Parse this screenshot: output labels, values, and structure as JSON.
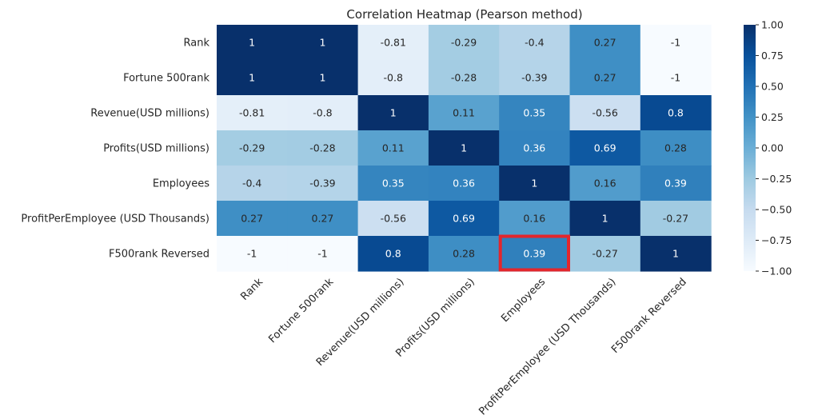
{
  "chart_data": {
    "type": "heatmap",
    "title": "Correlation Heatmap (Pearson method)",
    "xlabel": "",
    "ylabel": "",
    "row_labels": [
      "Rank",
      "Fortune 500rank",
      "Revenue(USD millions)",
      "Profits(USD millions)",
      "Employees",
      "ProfitPerEmployee (USD Thousands)",
      "F500rank Reversed"
    ],
    "col_labels": [
      "Rank",
      "Fortune 500rank",
      "Revenue(USD millions)",
      "Profits(USD millions)",
      "Employees",
      "ProfitPerEmployee (USD Thousands)",
      "F500rank Reversed"
    ],
    "values": [
      [
        1,
        1,
        -0.81,
        -0.29,
        -0.4,
        0.27,
        -1
      ],
      [
        1,
        1,
        -0.8,
        -0.28,
        -0.39,
        0.27,
        -1
      ],
      [
        -0.81,
        -0.8,
        1,
        0.11,
        0.35,
        -0.56,
        0.8
      ],
      [
        -0.29,
        -0.28,
        0.11,
        1,
        0.36,
        0.69,
        0.28
      ],
      [
        -0.4,
        -0.39,
        0.35,
        0.36,
        1,
        0.16,
        0.39
      ],
      [
        0.27,
        0.27,
        -0.56,
        0.69,
        0.16,
        1,
        -0.27
      ],
      [
        -1,
        -1,
        0.8,
        0.28,
        0.39,
        -0.27,
        1
      ]
    ],
    "annotations": [
      [
        "1",
        "1",
        "-0.81",
        "-0.29",
        "-0.4",
        "0.27",
        "-1"
      ],
      [
        "1",
        "1",
        "-0.8",
        "-0.28",
        "-0.39",
        "0.27",
        "-1"
      ],
      [
        "-0.81",
        "-0.8",
        "1",
        "0.11",
        "0.35",
        "-0.56",
        "0.8"
      ],
      [
        "-0.29",
        "-0.28",
        "0.11",
        "1",
        "0.36",
        "0.69",
        "0.28"
      ],
      [
        "-0.4",
        "-0.39",
        "0.35",
        "0.36",
        "1",
        "0.16",
        "0.39"
      ],
      [
        "0.27",
        "0.27",
        "-0.56",
        "0.69",
        "0.16",
        "1",
        "-0.27"
      ],
      [
        "-1",
        "-1",
        "0.8",
        "0.28",
        "0.39",
        "-0.27",
        "1"
      ]
    ],
    "colormap": "Blues",
    "vmin": -1,
    "vmax": 1,
    "colorbar": {
      "ticks": [
        1.0,
        0.75,
        0.5,
        0.25,
        0.0,
        -0.25,
        -0.5,
        -0.75,
        -1.0
      ],
      "tick_labels": [
        "1.00",
        "0.75",
        "0.50",
        "0.25",
        "0.00",
        "−0.25",
        "−0.50",
        "−0.75",
        "−1.00"
      ]
    },
    "highlight": {
      "row": 6,
      "col": 4,
      "color": "#e3262c"
    }
  }
}
